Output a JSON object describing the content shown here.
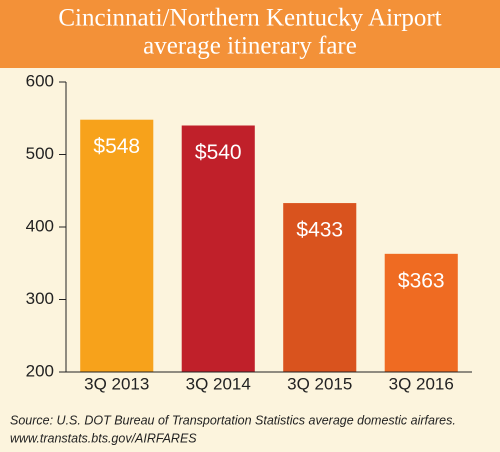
{
  "chart_data": {
    "type": "bar",
    "title": [
      "Cincinnati/Northern Kentucky Airport",
      "average itinerary fare"
    ],
    "categories": [
      "3Q 2013",
      "3Q 2014",
      "3Q 2015",
      "3Q 2016"
    ],
    "values": [
      548,
      540,
      433,
      363
    ],
    "value_labels": [
      "$548",
      "$540",
      "$433",
      "$363"
    ],
    "colors": [
      "#f7a21b",
      "#c0202a",
      "#d9531e",
      "#ef6b22"
    ],
    "ylim": [
      200,
      600
    ],
    "yticks": [
      200,
      300,
      400,
      500,
      600
    ],
    "source": [
      "Source: U.S. DOT Bureau of Transportation Statistics average domestic airfares.",
      "www.transtats.bts.gov/AIRFARES"
    ]
  }
}
